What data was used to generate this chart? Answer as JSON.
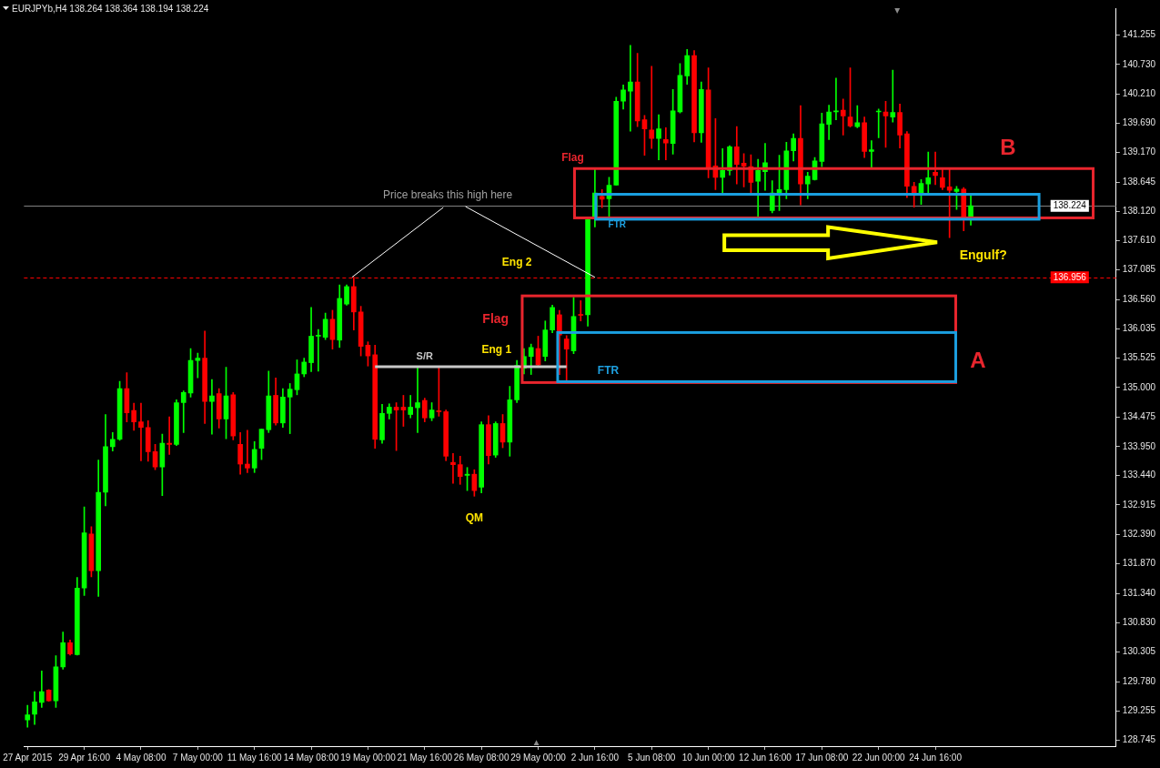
{
  "chart_data": {
    "type": "candlestick",
    "title": "EURJPYb,H4 138.264 138.364 138.194 138.224",
    "categories": [
      "27 Apr 2015",
      null,
      null,
      null,
      null,
      null,
      null,
      null,
      "29 Apr 16:00",
      null,
      null,
      null,
      null,
      null,
      null,
      null,
      "4 May 08:00",
      null,
      null,
      null,
      null,
      null,
      null,
      null,
      "7 May 00:00",
      null,
      null,
      null,
      null,
      null,
      null,
      null,
      "11 May 16:00",
      null,
      null,
      null,
      null,
      null,
      null,
      null,
      "14 May 08:00",
      null,
      null,
      null,
      null,
      null,
      null,
      null,
      "19 May 00:00",
      null,
      null,
      null,
      null,
      null,
      null,
      null,
      "21 May 16:00",
      null,
      null,
      null,
      null,
      null,
      null,
      null,
      "26 May 08:00",
      null,
      null,
      null,
      null,
      null,
      null,
      null,
      "29 May 00:00",
      null,
      null,
      null,
      null,
      null,
      null,
      null,
      "2 Jun 16:00",
      null,
      null,
      null,
      null,
      null,
      null,
      null,
      "5 Jun 08:00",
      null,
      null,
      null,
      null,
      null,
      null,
      null,
      "10 Jun 00:00",
      null,
      null,
      null,
      null,
      null,
      null,
      null,
      "12 Jun 16:00",
      null,
      null,
      null,
      null,
      null,
      null,
      null,
      "17 Jun 08:00",
      null,
      null,
      null,
      null,
      null,
      null,
      null,
      "22 Jun 00:00",
      null,
      null,
      null,
      null,
      null,
      null,
      null,
      "24 Jun 16:00",
      null,
      null,
      null,
      null,
      null,
      null,
      null,
      null,
      null,
      null,
      null,
      null,
      null,
      null,
      null,
      null,
      null,
      null,
      null,
      null,
      null,
      null,
      null,
      null,
      null
    ],
    "ohlc": [
      [
        129.1,
        129.36,
        128.97,
        129.19
      ],
      [
        129.2,
        129.6,
        129.02,
        129.42
      ],
      [
        129.41,
        129.97,
        129.32,
        129.6
      ],
      [
        129.63,
        129.64,
        129.43,
        129.44
      ],
      [
        129.44,
        130.24,
        129.32,
        130.04
      ],
      [
        130.04,
        130.66,
        130.0,
        130.47
      ],
      [
        130.47,
        130.52,
        130.25,
        130.27
      ],
      [
        130.26,
        131.63,
        130.25,
        131.44
      ],
      [
        131.44,
        132.88,
        131.31,
        132.42
      ],
      [
        132.4,
        132.53,
        131.64,
        131.75
      ],
      [
        131.75,
        133.71,
        131.29,
        133.14
      ],
      [
        133.14,
        134.52,
        132.9,
        133.95
      ],
      [
        133.95,
        134.2,
        133.87,
        134.08
      ],
      [
        134.08,
        135.11,
        134.06,
        134.98
      ],
      [
        134.98,
        135.26,
        134.39,
        134.55
      ],
      [
        134.59,
        134.72,
        134.24,
        134.39
      ],
      [
        134.39,
        134.72,
        133.7,
        134.29
      ],
      [
        134.29,
        134.41,
        133.69,
        133.86
      ],
      [
        133.86,
        133.99,
        133.54,
        133.59
      ],
      [
        133.59,
        134.17,
        133.08,
        134.01
      ],
      [
        134.01,
        134.48,
        133.81,
        133.99
      ],
      [
        133.99,
        134.78,
        133.97,
        134.73
      ],
      [
        134.73,
        134.94,
        134.2,
        134.91
      ],
      [
        134.9,
        135.69,
        134.83,
        135.48
      ],
      [
        135.48,
        135.61,
        135.17,
        135.52
      ],
      [
        135.52,
        136.0,
        134.36,
        134.75
      ],
      [
        134.75,
        135.14,
        134.17,
        134.85
      ],
      [
        134.89,
        134.98,
        134.28,
        134.44
      ],
      [
        134.44,
        135.36,
        134.09,
        134.85
      ],
      [
        134.87,
        134.91,
        134.07,
        134.14
      ],
      [
        133.99,
        134.2,
        133.46,
        133.64
      ],
      [
        133.64,
        134.24,
        133.49,
        133.57
      ],
      [
        133.57,
        134.04,
        133.49,
        133.9
      ],
      [
        133.92,
        134.26,
        133.72,
        134.26
      ],
      [
        134.25,
        135.29,
        134.2,
        134.85
      ],
      [
        134.86,
        135.17,
        134.33,
        134.37
      ],
      [
        134.37,
        134.98,
        134.29,
        134.83
      ],
      [
        134.83,
        135.07,
        134.18,
        134.97
      ],
      [
        134.96,
        135.49,
        134.87,
        135.24
      ],
      [
        135.24,
        135.52,
        135.19,
        135.45
      ],
      [
        135.44,
        136.42,
        135.28,
        135.91
      ],
      [
        135.91,
        136.03,
        135.29,
        135.91
      ],
      [
        135.89,
        136.32,
        135.85,
        136.21
      ],
      [
        136.21,
        136.37,
        135.68,
        135.85
      ],
      [
        135.84,
        136.82,
        135.71,
        136.58
      ],
      [
        136.48,
        136.82,
        136.46,
        136.79
      ],
      [
        136.79,
        136.956,
        136.02,
        136.34
      ],
      [
        136.34,
        136.44,
        135.56,
        135.73
      ],
      [
        135.75,
        135.81,
        135.38,
        135.56
      ],
      [
        135.58,
        135.75,
        133.92,
        134.08
      ],
      [
        134.07,
        134.7,
        134.01,
        134.54
      ],
      [
        134.54,
        134.71,
        134.44,
        134.65
      ],
      [
        134.65,
        134.73,
        133.88,
        134.6
      ],
      [
        134.65,
        134.86,
        134.31,
        134.6
      ],
      [
        134.52,
        134.86,
        134.46,
        134.65
      ],
      [
        134.64,
        135.35,
        134.2,
        134.73
      ],
      [
        134.77,
        134.81,
        134.39,
        134.46
      ],
      [
        134.46,
        134.73,
        134.41,
        134.6
      ],
      [
        134.57,
        135.35,
        134.49,
        134.57
      ],
      [
        134.57,
        134.6,
        133.7,
        133.78
      ],
      [
        133.67,
        133.83,
        133.3,
        133.63
      ],
      [
        133.63,
        133.78,
        133.28,
        133.42
      ],
      [
        133.44,
        133.58,
        133.17,
        133.46
      ],
      [
        133.46,
        133.54,
        133.07,
        133.17
      ],
      [
        133.23,
        134.39,
        133.13,
        134.34
      ],
      [
        134.34,
        134.5,
        133.64,
        133.79
      ],
      [
        133.8,
        134.39,
        133.76,
        134.36
      ],
      [
        134.36,
        134.52,
        133.93,
        134.03
      ],
      [
        134.03,
        135.02,
        133.78,
        134.78
      ],
      [
        134.78,
        135.48,
        134.73,
        135.39
      ],
      [
        135.34,
        135.69,
        135.24,
        135.55
      ],
      [
        135.55,
        135.77,
        135.23,
        135.71
      ],
      [
        135.69,
        135.91,
        135.39,
        135.4
      ],
      [
        135.55,
        136.18,
        135.47,
        136.02
      ],
      [
        136.02,
        136.46,
        135.97,
        136.42
      ],
      [
        136.29,
        136.37,
        135.23,
        135.93
      ],
      [
        135.86,
        135.92,
        135.12,
        135.68
      ],
      [
        135.65,
        136.6,
        135.6,
        136.26
      ],
      [
        136.29,
        136.54,
        136.18,
        136.28
      ],
      [
        136.29,
        138.0,
        136.09,
        137.98
      ],
      [
        138.0,
        138.87,
        137.85,
        138.45
      ],
      [
        138.39,
        138.51,
        138.19,
        138.34
      ],
      [
        138.35,
        138.73,
        138.03,
        138.59
      ],
      [
        138.59,
        140.15,
        138.59,
        140.08
      ],
      [
        140.08,
        140.37,
        139.94,
        140.28
      ],
      [
        140.26,
        141.07,
        139.55,
        140.42
      ],
      [
        140.42,
        140.93,
        139.63,
        139.73
      ],
      [
        139.75,
        139.83,
        139.12,
        139.59
      ],
      [
        139.57,
        140.7,
        139.24,
        139.42
      ],
      [
        139.42,
        139.84,
        139.04,
        139.59
      ],
      [
        139.4,
        139.61,
        139.04,
        139.34
      ],
      [
        139.33,
        140.29,
        139.14,
        139.91
      ],
      [
        139.89,
        140.75,
        139.87,
        140.54
      ],
      [
        140.53,
        141.0,
        140.38,
        140.89
      ],
      [
        140.89,
        140.98,
        139.36,
        139.52
      ],
      [
        139.52,
        140.42,
        139.35,
        140.29
      ],
      [
        140.28,
        140.67,
        138.72,
        138.9
      ],
      [
        138.93,
        139.77,
        138.51,
        138.73
      ],
      [
        138.73,
        139.24,
        138.45,
        138.85
      ],
      [
        138.85,
        139.29,
        138.77,
        139.27
      ],
      [
        139.27,
        139.63,
        138.61,
        138.96
      ],
      [
        138.98,
        139.15,
        138.56,
        138.93
      ],
      [
        138.92,
        139.13,
        138.46,
        138.64
      ],
      [
        138.66,
        139.05,
        138.02,
        138.85
      ],
      [
        138.83,
        139.33,
        138.5,
        138.99
      ],
      [
        138.14,
        138.67,
        138.1,
        138.45
      ],
      [
        138.45,
        139.12,
        138.14,
        138.51
      ],
      [
        138.51,
        139.35,
        138.35,
        139.2
      ],
      [
        139.2,
        139.5,
        139.02,
        139.42
      ],
      [
        139.42,
        140.0,
        138.24,
        138.61
      ],
      [
        138.61,
        138.82,
        138.35,
        138.75
      ],
      [
        138.69,
        139.08,
        138.68,
        139.02
      ],
      [
        139.01,
        139.87,
        138.92,
        139.68
      ],
      [
        139.67,
        140.01,
        139.4,
        139.89
      ],
      [
        139.89,
        140.49,
        139.75,
        139.91
      ],
      [
        139.92,
        140.12,
        139.48,
        139.82
      ],
      [
        139.8,
        140.67,
        139.62,
        139.64
      ],
      [
        139.63,
        140.0,
        139.61,
        139.7
      ],
      [
        139.7,
        139.8,
        139.08,
        139.19
      ],
      [
        139.19,
        139.38,
        138.9,
        139.22
      ],
      [
        139.89,
        139.94,
        139.43,
        139.89
      ],
      [
        139.89,
        140.08,
        139.26,
        139.82
      ],
      [
        139.8,
        140.63,
        139.71,
        139.88
      ],
      [
        139.88,
        140.03,
        139.25,
        139.48
      ],
      [
        139.5,
        139.54,
        138.37,
        138.57
      ],
      [
        138.57,
        138.64,
        138.2,
        138.41
      ],
      [
        138.46,
        138.69,
        138.25,
        138.62
      ],
      [
        138.61,
        139.18,
        138.45,
        138.72
      ],
      [
        138.82,
        139.18,
        138.6,
        138.76
      ],
      [
        138.72,
        138.87,
        138.51,
        138.55
      ],
      [
        138.56,
        138.87,
        137.66,
        138.5
      ],
      [
        138.48,
        138.57,
        138.16,
        138.52
      ],
      [
        138.52,
        138.55,
        137.78,
        138.03
      ],
      [
        138.03,
        138.4,
        137.88,
        138.224
      ],
      null,
      null,
      null,
      null,
      null,
      null,
      null,
      null,
      null,
      null,
      null,
      null,
      null,
      null,
      null,
      null,
      null,
      null,
      null,
      null
    ],
    "colors": [
      "#00ff00",
      "#00ff00",
      "#00ff00",
      "#ff0000",
      "#00ff00",
      "#00ff00",
      "#ff0000",
      "#00ff00",
      "#00ff00",
      "#ff0000",
      "#00ff00",
      "#00ff00",
      "#00ff00",
      "#00ff00",
      "#ff0000",
      "#ff0000",
      "#ff0000",
      "#ff0000",
      "#ff0000",
      "#00ff00",
      "#ff0000",
      "#00ff00",
      "#00ff00",
      "#00ff00",
      "#00ff00",
      "#ff0000",
      "#00ff00",
      "#ff0000",
      "#00ff00",
      "#ff0000",
      "#ff0000",
      "#ff0000",
      "#00ff00",
      "#00ff00",
      "#00ff00",
      "#ff0000",
      "#00ff00",
      "#00ff00",
      "#00ff00",
      "#00ff00",
      "#00ff00",
      "#00ff00",
      "#00ff00",
      "#ff0000",
      "#00ff00",
      "#00ff00",
      "#ff0000",
      "#ff0000",
      "#ff0000",
      "#ff0000",
      "#00ff00",
      "#00ff00",
      "#ff0000",
      "#ff0000",
      "#00ff00",
      "#00ff00",
      "#ff0000",
      "#00ff00",
      "#ff0000",
      "#ff0000",
      "#ff0000",
      "#ff0000",
      "#00ff00",
      "#ff0000",
      "#00ff00",
      "#ff0000",
      "#00ff00",
      "#ff0000",
      "#00ff00",
      "#00ff00",
      "#00ff00",
      "#00ff00",
      "#ff0000",
      "#00ff00",
      "#00ff00",
      "#ff0000",
      "#ff0000",
      "#00ff00",
      "#ff0000",
      "#00ff00",
      "#00ff00",
      "#ff0000",
      "#00ff00",
      "#00ff00",
      "#00ff00",
      "#00ff00",
      "#ff0000",
      "#ff0000",
      "#ff0000",
      "#00ff00",
      "#ff0000",
      "#00ff00",
      "#00ff00",
      "#00ff00",
      "#ff0000",
      "#00ff00",
      "#ff0000",
      "#ff0000",
      "#00ff00",
      "#00ff00",
      "#ff0000",
      "#ff0000",
      "#ff0000",
      "#00ff00",
      "#00ff00",
      "#00ff00",
      "#00ff00",
      "#00ff00",
      "#00ff00",
      "#ff0000",
      "#00ff00",
      "#00ff00",
      "#00ff00",
      "#00ff00",
      "#00ff00",
      "#ff0000",
      "#ff0000",
      "#00ff00",
      "#ff0000",
      "#00ff00",
      "#00ff00",
      "#ff0000",
      "#00ff00",
      "#ff0000",
      "#ff0000",
      "#ff0000",
      "#00ff00",
      "#00ff00",
      "#ff0000",
      "#ff0000",
      "#ff0000",
      "#00ff00",
      "#ff0000",
      "#00ff00",
      null,
      null,
      null,
      null,
      null,
      null,
      null,
      null,
      null,
      null,
      null,
      null,
      null,
      null,
      null,
      null,
      null,
      null,
      null,
      null
    ],
    "ylim": [
      128.634,
      141.731
    ],
    "yticks": [
      128.745,
      129.255,
      {
        "value": 129.78,
        "label": "129.780"
      },
      130.305,
      {
        "value": 130.83,
        "label": "130.830"
      },
      {
        "value": 131.34,
        "label": "131.340"
      },
      {
        "value": 131.87,
        "label": "131.870"
      },
      {
        "value": 132.39,
        "label": "132.390"
      },
      132.915,
      {
        "value": 133.44,
        "label": "133.440"
      },
      {
        "value": 133.95,
        "label": "133.950"
      },
      134.475,
      {
        "value": 135,
        "label": "135.000"
      },
      135.525,
      136.035,
      {
        "value": 136.56,
        "label": "136.560"
      },
      137.085,
      {
        "value": 137.61,
        "label": "137.610"
      },
      {
        "value": 138.12,
        "label": "138.120"
      },
      138.645,
      {
        "value": 139.17,
        "label": "139.170"
      },
      {
        "value": 139.69,
        "label": "139.690"
      },
      {
        "value": 140.21,
        "label": "140.210"
      },
      {
        "value": 140.73,
        "label": "140.730"
      },
      141.255
    ],
    "ref_lines": [
      {
        "axis": "y",
        "value": 138.224,
        "label": "138.224",
        "color": "#808080"
      },
      {
        "axis": "y",
        "value": 136.956,
        "label": "136.956",
        "color": "#ff0000",
        "line_style": "dashed"
      }
    ],
    "series": [
      {
        "type": "line",
        "color": "#c8c8c8",
        "values": [
          null,
          null,
          null,
          null,
          null,
          null,
          null,
          null,
          null,
          null,
          null,
          null,
          null,
          null,
          null,
          null,
          null,
          null,
          null,
          null,
          null,
          null,
          null,
          null,
          null,
          null,
          null,
          null,
          null,
          null,
          null,
          null,
          null,
          null,
          null,
          null,
          null,
          null,
          null,
          null,
          null,
          null,
          null,
          null,
          null,
          null,
          null,
          null,
          null,
          135.37,
          135.37,
          135.37,
          135.37,
          135.37,
          135.37,
          135.37,
          135.37,
          135.37,
          135.37,
          135.37,
          135.37,
          135.37,
          135.37,
          135.37,
          135.37,
          135.37,
          135.37,
          135.37,
          135.37,
          135.37,
          135.37,
          135.37,
          135.37,
          135.37,
          135.37,
          135.37,
          135.37,
          null,
          null,
          null,
          null,
          null,
          null,
          null,
          null,
          null,
          null,
          null,
          null,
          null,
          null,
          null,
          null,
          null,
          null,
          null,
          null,
          null,
          null,
          null,
          null,
          null,
          null,
          null,
          null,
          null,
          null,
          null,
          null,
          null,
          null,
          null,
          null,
          null,
          null,
          null,
          null,
          null,
          null,
          null,
          null,
          null,
          null,
          null,
          null,
          null,
          null,
          null,
          null,
          null,
          null,
          null,
          null,
          null,
          null,
          null,
          null,
          null,
          null,
          null,
          null,
          null,
          null,
          null,
          null,
          null,
          null,
          null,
          null,
          null,
          null,
          null,
          null,
          null
        ]
      }
    ],
    "annotations": [
      {
        "text": "Price breaks this high here",
        "x": "2 Jun 16:00",
        "y": 136.956
      },
      "S/R",
      "Eng 2",
      "Flag",
      "Eng 1",
      "FTR",
      "QM",
      "A",
      "Flag",
      "FTR",
      "B",
      "Engulf?"
    ]
  }
}
